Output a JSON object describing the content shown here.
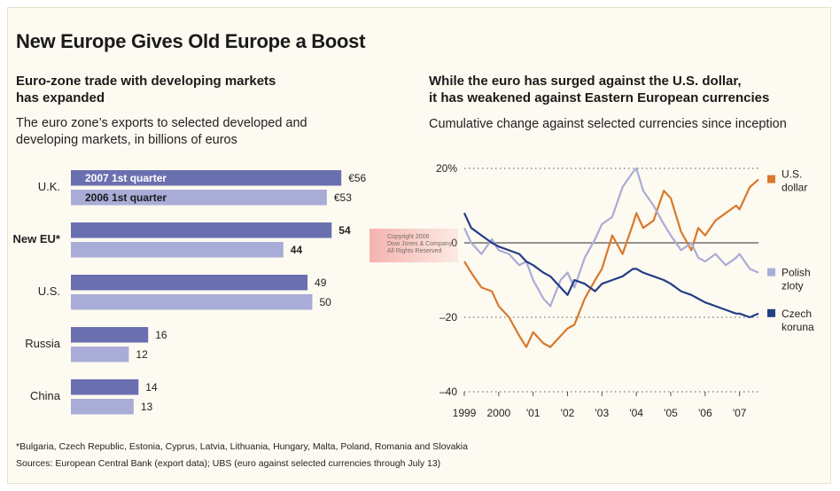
{
  "title": "New Europe Gives Old Europe a Boost",
  "left_panel": {
    "heading_line1": "Euro-zone trade with developing markets",
    "heading_line2": "has expanded",
    "subheading_line1": "The euro zone’s exports to selected developed and",
    "subheading_line2": "developing markets, in billions of euros"
  },
  "right_panel": {
    "heading_line1": "While the euro has surged against the U.S. dollar,",
    "heading_line2": "it has weakened against Eastern European currencies",
    "subheading": "Cumulative change against selected currencies since inception"
  },
  "watermark": {
    "line1": "Copyright 2006",
    "line2": "Dow Jones & Company",
    "line3": "All Rights Reserved"
  },
  "footnote": "*Bulgaria, Czech Republic, Estonia, Cyprus, Latvia, Lithuania, Hungary, Malta, Poland, Romania and Slovakia",
  "sources": "Sources: European Central Bank (export data); UBS (euro against selected currencies through July 13)",
  "colors": {
    "bar_2007": "#6a6fb0",
    "bar_2006": "#a9acd6",
    "usd": "#d9782b",
    "pln": "#a9acd6",
    "czk": "#233d87"
  },
  "chart_data": [
    {
      "type": "bar",
      "orientation": "horizontal",
      "categories": [
        "U.K.",
        "New EU*",
        "U.S.",
        "Russia",
        "China"
      ],
      "series": [
        {
          "name": "2007 1st quarter",
          "values": [
            56,
            54,
            49,
            16,
            14
          ]
        },
        {
          "name": "2006  1st quarter",
          "values": [
            53,
            44,
            50,
            12,
            13
          ]
        }
      ],
      "value_labels": {
        "2007": [
          "€56",
          "54",
          "49",
          "16",
          "14"
        ],
        "2006": [
          "€53",
          "44",
          "50",
          "12",
          "13"
        ]
      },
      "bold_category": "New EU*",
      "xlim": [
        0,
        60
      ]
    },
    {
      "type": "line",
      "y_ticks": [
        20,
        0,
        -20,
        -40
      ],
      "y_tick_labels": [
        "20%",
        "0",
        "–20",
        "–40"
      ],
      "ylim": [
        -40,
        20
      ],
      "x_ticks": [
        1999,
        2000,
        2001,
        2002,
        2003,
        2004,
        2005,
        2006,
        2007
      ],
      "x_tick_labels": [
        "1999",
        "2000",
        "'01",
        "'02",
        "'03",
        "'04",
        "'05",
        "'06",
        "'07"
      ],
      "xlim": [
        1999.0,
        2007.55
      ],
      "grid": "dotted horizontal",
      "series": [
        {
          "name": "U.S. dollar",
          "label_line1": "U.S.",
          "label_line2": "dollar",
          "x": [
            1999.0,
            1999.2,
            1999.5,
            1999.8,
            2000.0,
            2000.3,
            2000.6,
            2000.8,
            2001.0,
            2001.3,
            2001.5,
            2001.8,
            2002.0,
            2002.2,
            2002.5,
            2002.8,
            2003.0,
            2003.3,
            2003.6,
            2003.9,
            2004.0,
            2004.2,
            2004.5,
            2004.8,
            2005.0,
            2005.3,
            2005.6,
            2005.8,
            2006.0,
            2006.3,
            2006.6,
            2006.9,
            2007.0,
            2007.3,
            2007.55
          ],
          "values": [
            -5,
            -8,
            -12,
            -13,
            -17,
            -20,
            -25,
            -28,
            -24,
            -27,
            -28,
            -25,
            -23,
            -22,
            -15,
            -10,
            -7,
            2,
            -3,
            5,
            8,
            4,
            6,
            14,
            12,
            3,
            -2,
            4,
            2,
            6,
            8,
            10,
            9,
            15,
            17
          ]
        },
        {
          "name": "Polish zloty",
          "label_line1": "Polish",
          "label_line2": "zloty",
          "x": [
            1999.0,
            1999.2,
            1999.5,
            1999.8,
            2000.0,
            2000.3,
            2000.6,
            2000.8,
            2001.0,
            2001.3,
            2001.5,
            2001.8,
            2002.0,
            2002.2,
            2002.5,
            2002.8,
            2003.0,
            2003.3,
            2003.6,
            2003.9,
            2004.0,
            2004.2,
            2004.5,
            2004.8,
            2005.0,
            2005.3,
            2005.6,
            2005.8,
            2006.0,
            2006.3,
            2006.6,
            2006.9,
            2007.0,
            2007.3,
            2007.55
          ],
          "values": [
            4,
            0,
            -3,
            1,
            -2,
            -3,
            -6,
            -5,
            -10,
            -15,
            -17,
            -10,
            -8,
            -12,
            -4,
            1,
            5,
            7,
            15,
            19,
            20,
            14,
            10,
            5,
            2,
            -2,
            0,
            -4,
            -5,
            -3,
            -6,
            -4,
            -3,
            -7,
            -8
          ]
        },
        {
          "name": "Czech koruna",
          "label_line1": "Czech",
          "label_line2": "koruna",
          "x": [
            1999.0,
            1999.2,
            1999.5,
            1999.8,
            2000.0,
            2000.3,
            2000.6,
            2000.8,
            2001.0,
            2001.3,
            2001.5,
            2001.8,
            2002.0,
            2002.2,
            2002.5,
            2002.8,
            2003.0,
            2003.3,
            2003.6,
            2003.9,
            2004.0,
            2004.2,
            2004.5,
            2004.8,
            2005.0,
            2005.3,
            2005.6,
            2005.8,
            2006.0,
            2006.3,
            2006.6,
            2006.9,
            2007.0,
            2007.3,
            2007.55
          ],
          "values": [
            8,
            4,
            2,
            0,
            -1,
            -2,
            -3,
            -5,
            -6,
            -8,
            -9,
            -12,
            -14,
            -10,
            -11,
            -13,
            -11,
            -10,
            -9,
            -7,
            -7,
            -8,
            -9,
            -10,
            -11,
            -13,
            -14,
            -15,
            -16,
            -17,
            -18,
            -19,
            -19,
            -20,
            -19
          ]
        }
      ]
    }
  ]
}
